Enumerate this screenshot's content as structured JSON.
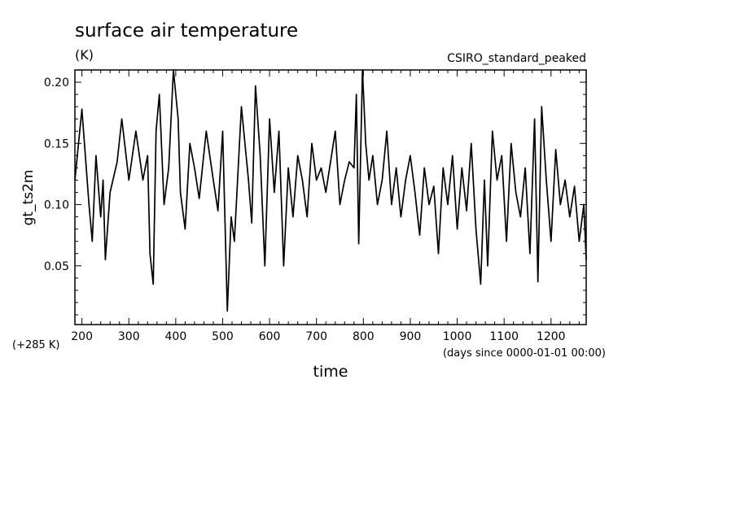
{
  "chart_data": {
    "type": "line",
    "title": "surface air temperature",
    "units": "(K)",
    "experiment": "CSIRO_standard_peaked",
    "xlabel": "time",
    "x_units": "(days since 0000-01-01 00:00)",
    "ylabel": "gt_ts2m",
    "y_offset_label": "(+285 K)",
    "xlim": [
      185,
      1275
    ],
    "ylim": [
      0.002,
      0.21
    ],
    "x_ticks": [
      "200",
      "300",
      "400",
      "500",
      "600",
      "700",
      "800",
      "900",
      "1000",
      "1100",
      "1200"
    ],
    "y_ticks": [
      "0.05",
      "0.10",
      "0.15",
      "0.20"
    ],
    "grid": false,
    "legend": "none",
    "line_color": "#000000",
    "series": [
      {
        "x": [
          185,
          200,
          215,
          222,
          230,
          240,
          245,
          250,
          260,
          275,
          285,
          300,
          315,
          330,
          340,
          345,
          352,
          358,
          365,
          375,
          385,
          395,
          405,
          410,
          420,
          430,
          440,
          450,
          465,
          480,
          490,
          500,
          510,
          518,
          525,
          540,
          555,
          562,
          570,
          580,
          590,
          600,
          610,
          620,
          630,
          640,
          650,
          660,
          670,
          680,
          690,
          700,
          710,
          720,
          730,
          740,
          750,
          760,
          770,
          780,
          785,
          790,
          798,
          805,
          812,
          820,
          830,
          840,
          850,
          860,
          870,
          880,
          890,
          900,
          910,
          920,
          930,
          940,
          950,
          960,
          970,
          980,
          990,
          1000,
          1010,
          1020,
          1030,
          1040,
          1050,
          1058,
          1065,
          1075,
          1085,
          1095,
          1105,
          1115,
          1125,
          1135,
          1145,
          1155,
          1165,
          1172,
          1180,
          1190,
          1200,
          1210,
          1220,
          1230,
          1240,
          1250,
          1260,
          1270,
          1275
        ],
        "y": [
          0.12,
          0.178,
          0.1,
          0.07,
          0.14,
          0.09,
          0.12,
          0.055,
          0.11,
          0.135,
          0.17,
          0.12,
          0.16,
          0.12,
          0.14,
          0.06,
          0.035,
          0.16,
          0.19,
          0.1,
          0.13,
          0.21,
          0.17,
          0.11,
          0.08,
          0.15,
          0.13,
          0.105,
          0.16,
          0.12,
          0.095,
          0.16,
          0.013,
          0.09,
          0.07,
          0.18,
          0.12,
          0.085,
          0.197,
          0.14,
          0.05,
          0.17,
          0.11,
          0.16,
          0.05,
          0.13,
          0.09,
          0.14,
          0.12,
          0.09,
          0.15,
          0.12,
          0.13,
          0.11,
          0.135,
          0.16,
          0.1,
          0.12,
          0.135,
          0.13,
          0.19,
          0.068,
          0.21,
          0.15,
          0.12,
          0.14,
          0.1,
          0.12,
          0.16,
          0.1,
          0.13,
          0.09,
          0.12,
          0.14,
          0.11,
          0.075,
          0.13,
          0.1,
          0.115,
          0.06,
          0.13,
          0.1,
          0.14,
          0.08,
          0.13,
          0.095,
          0.15,
          0.08,
          0.035,
          0.12,
          0.05,
          0.16,
          0.12,
          0.14,
          0.07,
          0.15,
          0.11,
          0.09,
          0.13,
          0.06,
          0.17,
          0.037,
          0.18,
          0.12,
          0.07,
          0.145,
          0.1,
          0.12,
          0.09,
          0.115,
          0.07,
          0.1,
          0.055
        ]
      }
    ]
  }
}
